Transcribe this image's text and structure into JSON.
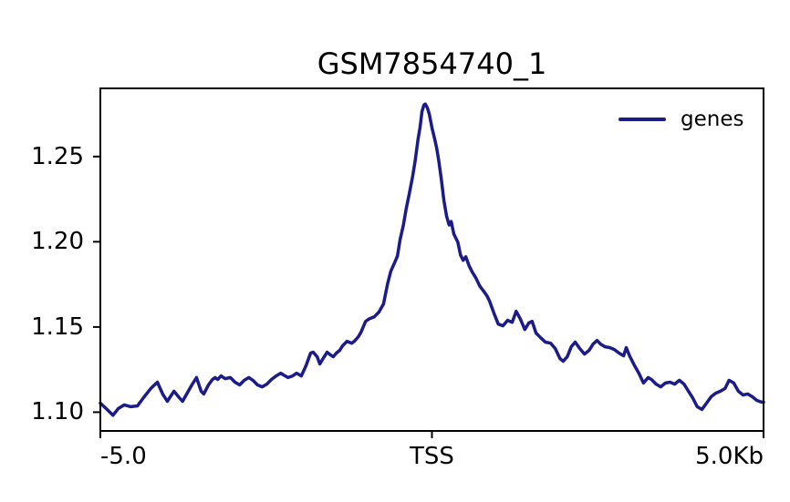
{
  "page": {
    "background": "#ffffff",
    "text_color": "#000000"
  },
  "chart_data": {
    "type": "line",
    "title": "GSM7854740_1",
    "xlabel": "",
    "ylabel": "",
    "x_units": "Kb",
    "xlim": [
      -5.0,
      5.0
    ],
    "ylim": [
      1.089,
      1.29
    ],
    "grid": false,
    "xticks": [
      {
        "value": -5.0,
        "label": "-5.0",
        "align": "left"
      },
      {
        "value": 0.0,
        "label": "TSS",
        "align": "center"
      },
      {
        "value": 5.0,
        "label": "5.0Kb",
        "align": "right"
      }
    ],
    "yticks": [
      {
        "value": 1.1,
        "label": "1.10"
      },
      {
        "value": 1.15,
        "label": "1.15"
      },
      {
        "value": 1.2,
        "label": "1.20"
      },
      {
        "value": 1.25,
        "label": "1.25"
      }
    ],
    "legend": {
      "position": "upper right",
      "frame": false,
      "entries": [
        {
          "label": "genes",
          "color": "#1b1b8a"
        }
      ]
    },
    "axis_color": "#000000",
    "series": [
      {
        "name": "genes",
        "color": "#1b1b8a",
        "linewidth": 3.5,
        "x": [
          -5.0,
          -4.9,
          -4.81,
          -4.73,
          -4.64,
          -4.54,
          -4.44,
          -4.35,
          -4.24,
          -4.14,
          -4.06,
          -3.99,
          -3.89,
          -3.81,
          -3.76,
          -3.69,
          -3.62,
          -3.55,
          -3.48,
          -3.44,
          -3.37,
          -3.31,
          -3.27,
          -3.23,
          -3.18,
          -3.12,
          -3.04,
          -2.97,
          -2.9,
          -2.83,
          -2.76,
          -2.7,
          -2.63,
          -2.56,
          -2.49,
          -2.42,
          -2.35,
          -2.28,
          -2.24,
          -2.17,
          -2.1,
          -2.04,
          -1.97,
          -1.9,
          -1.83,
          -1.79,
          -1.73,
          -1.69,
          -1.65,
          -1.58,
          -1.53,
          -1.49,
          -1.44,
          -1.39,
          -1.35,
          -1.28,
          -1.21,
          -1.17,
          -1.11,
          -1.07,
          -1.0,
          -0.94,
          -0.87,
          -0.8,
          -0.73,
          -0.67,
          -0.62,
          -0.56,
          -0.52,
          -0.48,
          -0.43,
          -0.39,
          -0.34,
          -0.29,
          -0.25,
          -0.21,
          -0.18,
          -0.15,
          -0.12,
          -0.1,
          -0.07,
          -0.04,
          0.0,
          0.04,
          0.07,
          0.1,
          0.14,
          0.18,
          0.22,
          0.26,
          0.29,
          0.33,
          0.39,
          0.43,
          0.47,
          0.51,
          0.56,
          0.61,
          0.66,
          0.72,
          0.77,
          0.83,
          0.87,
          0.94,
          1.0,
          1.07,
          1.14,
          1.21,
          1.27,
          1.33,
          1.4,
          1.46,
          1.51,
          1.57,
          1.64,
          1.71,
          1.79,
          1.86,
          1.93,
          1.98,
          2.04,
          2.1,
          2.16,
          2.23,
          2.3,
          2.37,
          2.43,
          2.49,
          2.54,
          2.61,
          2.68,
          2.75,
          2.82,
          2.89,
          2.93,
          2.98,
          3.05,
          3.12,
          3.19,
          3.26,
          3.31,
          3.38,
          3.45,
          3.52,
          3.59,
          3.66,
          3.73,
          3.8,
          3.86,
          3.93,
          4.0,
          4.07,
          4.14,
          4.21,
          4.28,
          4.35,
          4.42,
          4.48,
          4.55,
          4.62,
          4.69,
          4.76,
          4.83,
          4.9,
          4.97,
          5.0
        ],
        "y": [
          1.1053,
          1.1016,
          1.0982,
          1.1021,
          1.1043,
          1.1032,
          1.1037,
          1.1085,
          1.1139,
          1.1176,
          1.1107,
          1.1064,
          1.1123,
          1.1085,
          1.1064,
          1.1112,
          1.116,
          1.1203,
          1.1123,
          1.1107,
          1.116,
          1.1192,
          1.1203,
          1.1192,
          1.1213,
          1.1197,
          1.1203,
          1.1176,
          1.116,
          1.1187,
          1.1203,
          1.1187,
          1.116,
          1.1149,
          1.1165,
          1.1192,
          1.1213,
          1.1229,
          1.1219,
          1.1203,
          1.1213,
          1.1229,
          1.1213,
          1.1272,
          1.1347,
          1.1352,
          1.1325,
          1.1283,
          1.1309,
          1.1352,
          1.1336,
          1.1325,
          1.1347,
          1.1363,
          1.1389,
          1.1416,
          1.1405,
          1.1416,
          1.1443,
          1.1469,
          1.1533,
          1.1549,
          1.156,
          1.1587,
          1.1635,
          1.1752,
          1.1827,
          1.188,
          1.1917,
          1.2013,
          1.2098,
          1.2189,
          1.2285,
          1.2386,
          1.2482,
          1.26,
          1.2669,
          1.2765,
          1.2803,
          1.2808,
          1.2787,
          1.2749,
          1.2669,
          1.2605,
          1.2552,
          1.2482,
          1.237,
          1.2242,
          1.2151,
          1.2098,
          1.2119,
          1.2045,
          1.1997,
          1.1923,
          1.1891,
          1.1912,
          1.1859,
          1.1821,
          1.1789,
          1.1741,
          1.1715,
          1.1683,
          1.1651,
          1.1576,
          1.1517,
          1.1507,
          1.1539,
          1.1528,
          1.1592,
          1.1549,
          1.1485,
          1.1523,
          1.1533,
          1.1464,
          1.1437,
          1.1411,
          1.1405,
          1.1373,
          1.1315,
          1.1299,
          1.1325,
          1.1384,
          1.1411,
          1.1373,
          1.1341,
          1.1363,
          1.14,
          1.1421,
          1.14,
          1.1384,
          1.1379,
          1.1368,
          1.1347,
          1.1331,
          1.1379,
          1.1331,
          1.1277,
          1.1229,
          1.1171,
          1.1203,
          1.1192,
          1.1165,
          1.1149,
          1.1171,
          1.1176,
          1.1165,
          1.1187,
          1.1165,
          1.1128,
          1.1085,
          1.1032,
          1.1016,
          1.1053,
          1.1091,
          1.1112,
          1.1123,
          1.1139,
          1.1187,
          1.1171,
          1.1123,
          1.1101,
          1.1107,
          1.1091,
          1.1069,
          1.1059,
          1.1059
        ]
      }
    ]
  }
}
